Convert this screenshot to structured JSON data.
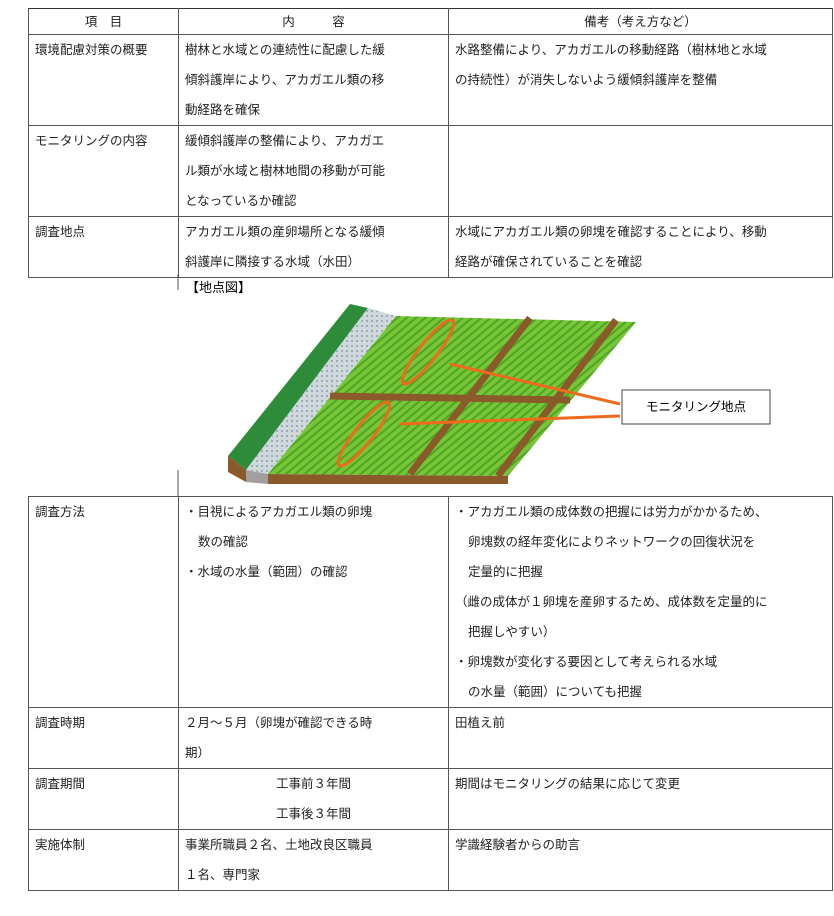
{
  "table": {
    "header": [
      "項　目",
      "内　　　容",
      "備考（考え方など）"
    ],
    "rows": [
      [
        [
          "環境配慮対策の概要"
        ],
        [
          "樹林と水域との連続性に配慮した緩",
          "傾斜護岸により、アカガエル類の移",
          "動経路を確保"
        ],
        [
          "水路整備により、アカガエルの移動経路（樹林地と水域",
          "の持続性）が消失しないよう緩傾斜護岸を整備"
        ]
      ],
      [
        [
          "モニタリングの内容"
        ],
        [
          "緩傾斜護岸の整備により、アカガエ",
          "ル類が水域と樹林地間の移動が可能",
          "となっているか確認"
        ],
        []
      ],
      [
        [
          "調査地点"
        ],
        [
          "アカガエル類の産卵場所となる緩傾",
          "斜護岸に隣接する水域（水田）"
        ],
        [
          "水域にアカガエル類の卵塊を確認することにより、移動",
          "経路が確保されていることを確認"
        ]
      ]
    ]
  },
  "figure": {
    "title": "【地点図】",
    "callout": "モニタリング地点"
  },
  "table2": {
    "rows": [
      [
        [
          "調査方法"
        ],
        [
          "・目視によるアカガエル類の卵塊",
          "数の確認",
          "・水域の水量（範囲）の確認"
        ],
        [
          "・アカガエル類の成体数の把握には労力がかかるため、",
          "卵塊数の経年変化によりネットワークの回復状況を",
          "定量的に把握",
          "（雌の成体が１卵塊を産卵するため、成体数を定量的に",
          "把握しやすい）",
          "・卵塊数が変化する要因として考えられる水域",
          "の水量（範囲）についても把握"
        ]
      ],
      [
        [
          "調査時期"
        ],
        [
          "２月～５月（卵塊が確認できる時",
          "期）"
        ],
        [
          "田植え前"
        ]
      ],
      [
        [
          "調査期間"
        ],
        [
          "工事前３年間",
          "工事後３年間"
        ],
        [
          "期間はモニタリングの結果に応じて変更"
        ]
      ],
      [
        [
          "実施体制"
        ],
        [
          "事業所職員２名、土地改良区職員",
          "１名、専門家"
        ],
        [
          "学識経験者からの助言"
        ]
      ]
    ]
  }
}
